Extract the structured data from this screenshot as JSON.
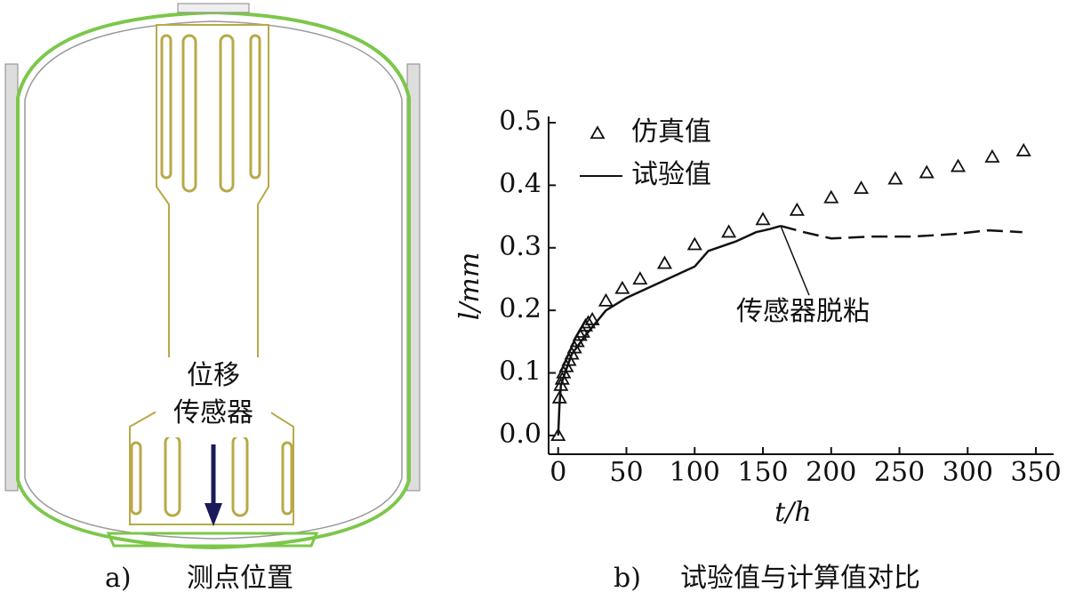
{
  "panel_a": {
    "annotation_lines": [
      "位移",
      "传感器"
    ],
    "label": "a)",
    "caption": "测点位置"
  },
  "chart_data": {
    "type": "line",
    "caption_label": "b)",
    "caption": "试验值与计算值对比",
    "xlabel": "t/h",
    "ylabel": "l/mm",
    "xlim": [
      -7,
      363
    ],
    "ylim": [
      -0.03,
      0.51
    ],
    "xticks": [
      0,
      50,
      100,
      150,
      200,
      250,
      300,
      350
    ],
    "yticks": [
      {
        "value": 0,
        "label": "0.0"
      },
      0.1,
      0.2,
      0.3,
      0.4,
      0.5
    ],
    "legend": "upper left",
    "series": [
      {
        "name": "仿真值",
        "type": "scatter",
        "marker": "triangle",
        "color": "#111111",
        "x": [
          0,
          1,
          2,
          3,
          4,
          6,
          8,
          10,
          12,
          14,
          16,
          18,
          20,
          22,
          25,
          35,
          47,
          60,
          78,
          100,
          125,
          150,
          175,
          200,
          222,
          247,
          270,
          293,
          318,
          341
        ],
        "values": [
          0,
          0.06,
          0.08,
          0.09,
          0.1,
          0.11,
          0.12,
          0.13,
          0.14,
          0.15,
          0.16,
          0.165,
          0.175,
          0.18,
          0.185,
          0.215,
          0.235,
          0.25,
          0.275,
          0.305,
          0.325,
          0.345,
          0.36,
          0.38,
          0.395,
          0.41,
          0.42,
          0.43,
          0.445,
          0.455
        ]
      },
      {
        "name": "试验值",
        "type": "line",
        "color": "#111111",
        "x": [
          0,
          1,
          2,
          5,
          10,
          20,
          35,
          50,
          75,
          90,
          100,
          110,
          130,
          145,
          155,
          163
        ],
        "values": [
          0,
          0.05,
          0.08,
          0.1,
          0.13,
          0.16,
          0.2,
          0.22,
          0.245,
          0.26,
          0.27,
          0.295,
          0.31,
          0.325,
          0.33,
          0.335
        ]
      },
      {
        "type": "line",
        "dash": true,
        "color": "#111111",
        "x": [
          163,
          180,
          200,
          230,
          260,
          290,
          315,
          340
        ],
        "values": [
          0.335,
          0.325,
          0.315,
          0.318,
          0.318,
          0.322,
          0.328,
          0.325
        ]
      }
    ],
    "annotation": {
      "text": "传感器脱粘",
      "x": 163,
      "y": 0.335
    }
  }
}
